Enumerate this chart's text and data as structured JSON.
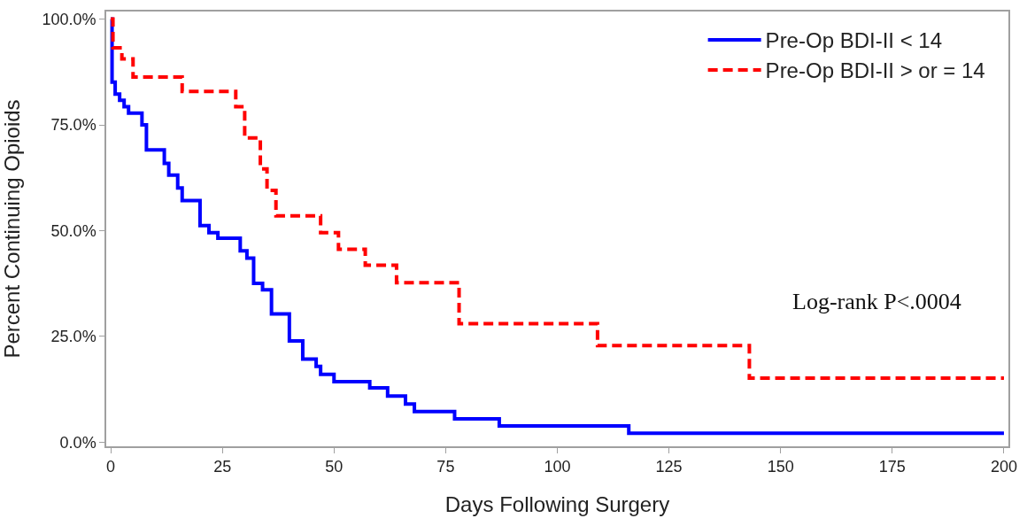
{
  "chart_data": {
    "type": "step",
    "xlabel": "Days Following Surgery",
    "ylabel": "Percent Continuing Opioids",
    "series": [
      {
        "name": "Pre-Op BDI-II < 14",
        "color": "#0000ff",
        "line_style": "solid",
        "x": [
          0,
          0.3,
          1,
          2,
          3,
          4,
          7,
          8,
          12,
          13,
          15,
          16,
          20,
          22,
          24,
          29,
          30.5,
          32,
          34,
          36,
          40,
          43,
          46,
          47,
          50,
          58,
          62,
          66,
          68,
          77,
          87,
          116,
          200
        ],
        "values": [
          100,
          85.1,
          82.3,
          80.8,
          79.3,
          77.8,
          75.0,
          69.1,
          65.9,
          63.1,
          60.1,
          57.1,
          51.2,
          49.5,
          48.2,
          45.2,
          43.5,
          37.5,
          36.0,
          30.3,
          23.9,
          19.6,
          17.9,
          16.0,
          14.3,
          12.8,
          10.9,
          9.0,
          7.2,
          5.5,
          3.8,
          2.1,
          2.1
        ]
      },
      {
        "name": "Pre-Op BDI-II > or = 14",
        "color": "#ff0000",
        "line_style": "dashed",
        "x": [
          0,
          0.5,
          2.5,
          5,
          16,
          28,
          30,
          33.5,
          35,
          37,
          47,
          51,
          57,
          64,
          78,
          109,
          143,
          200
        ],
        "values": [
          100,
          93.2,
          90.6,
          86.3,
          82.9,
          79.3,
          71.9,
          64.6,
          59.5,
          53.5,
          49.5,
          45.6,
          41.8,
          37.7,
          28.0,
          22.8,
          15.1,
          15.1
        ]
      }
    ],
    "xlim": [
      -1,
      201
    ],
    "xticks": [
      0,
      25,
      50,
      75,
      100,
      125,
      150,
      175,
      200
    ],
    "ylim": [
      -1,
      101.8
    ],
    "yticks": [
      {
        "value": 0,
        "label": "0.0%"
      },
      {
        "value": 25,
        "label": "25.0%"
      },
      {
        "value": 50,
        "label": "50.0%"
      },
      {
        "value": 75,
        "label": "75.0%"
      },
      {
        "value": 100,
        "label": "100.0%"
      }
    ],
    "legend": "top right",
    "marker": "none",
    "annotations": [
      "Log-rank P<.0004"
    ]
  }
}
